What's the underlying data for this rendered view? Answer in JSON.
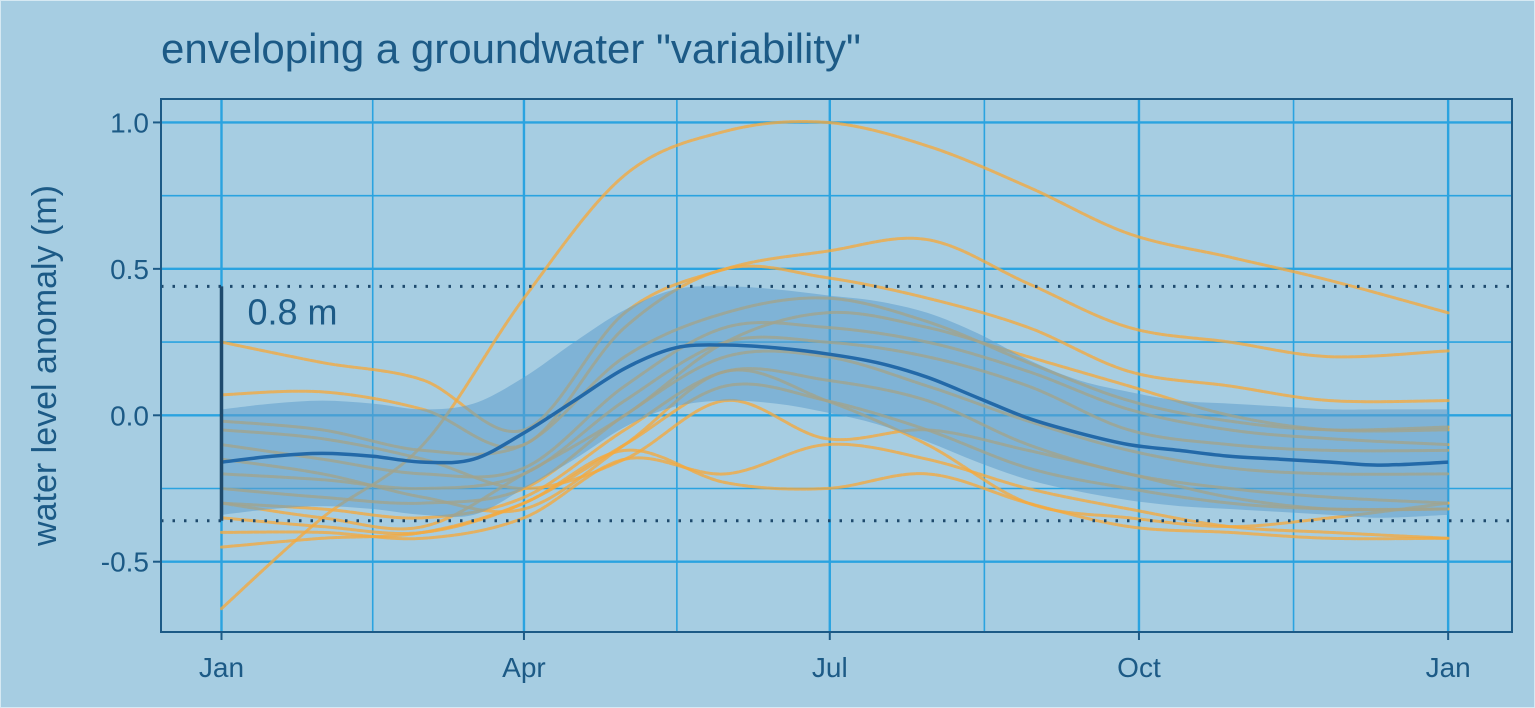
{
  "chart_data": {
    "type": "line",
    "title": "enveloping a groundwater \"variability\"",
    "xlabel": "",
    "ylabel": "water level anomaly (m)",
    "x_ticks": [
      {
        "label": "Jan",
        "day": 0
      },
      {
        "label": "Apr",
        "day": 90
      },
      {
        "label": "Jul",
        "day": 181
      },
      {
        "label": "Oct",
        "day": 273
      },
      {
        "label": "Jan",
        "day": 365
      }
    ],
    "y_ticks": [
      1.0,
      0.5,
      0.0,
      -0.5
    ],
    "y_tick_labels": [
      "1.0",
      "0.5",
      "0.0",
      "-0.5"
    ],
    "xlim_days": [
      -18,
      384
    ],
    "ylim": [
      -0.74,
      1.08
    ],
    "grid": true,
    "colors": {
      "background": "#a6cde2",
      "grid": "#2aa3e0",
      "text": "#1c5a86",
      "mean": "#2369a8",
      "band": "#5e9fcc",
      "traces": "#f5a93d",
      "envelope": "#1e4a6d"
    },
    "envelope": {
      "upper": 0.44,
      "lower": -0.36,
      "label": "0.8 m"
    },
    "mean": {
      "days": [
        0,
        15,
        30,
        45,
        60,
        75,
        90,
        105,
        120,
        135,
        150,
        165,
        180,
        195,
        210,
        225,
        240,
        255,
        270,
        285,
        300,
        315,
        330,
        345,
        365
      ],
      "values": [
        -0.16,
        -0.14,
        -0.13,
        -0.14,
        -0.16,
        -0.15,
        -0.06,
        0.05,
        0.16,
        0.23,
        0.24,
        0.23,
        0.21,
        0.18,
        0.13,
        0.06,
        -0.01,
        -0.06,
        -0.1,
        -0.12,
        -0.14,
        -0.15,
        -0.16,
        -0.17,
        -0.16
      ]
    },
    "band": {
      "days": [
        0,
        15,
        30,
        45,
        60,
        75,
        90,
        105,
        120,
        135,
        150,
        165,
        180,
        195,
        210,
        225,
        240,
        255,
        270,
        285,
        300,
        315,
        330,
        345,
        365
      ],
      "upper": [
        0.02,
        0.04,
        0.05,
        0.04,
        0.02,
        0.04,
        0.13,
        0.25,
        0.36,
        0.43,
        0.44,
        0.43,
        0.41,
        0.39,
        0.35,
        0.28,
        0.19,
        0.12,
        0.08,
        0.05,
        0.04,
        0.03,
        0.02,
        0.02,
        0.02
      ],
      "lower": [
        -0.34,
        -0.32,
        -0.31,
        -0.32,
        -0.34,
        -0.34,
        -0.25,
        -0.15,
        -0.04,
        0.03,
        0.05,
        0.04,
        0.01,
        -0.03,
        -0.09,
        -0.16,
        -0.22,
        -0.26,
        -0.29,
        -0.31,
        -0.32,
        -0.33,
        -0.34,
        -0.35,
        -0.34
      ]
    },
    "traces_days": [
      0,
      30,
      60,
      90,
      120,
      150,
      180,
      210,
      240,
      270,
      300,
      330,
      365
    ],
    "series": [
      {
        "values": [
          -0.66,
          -0.35,
          -0.1,
          0.4,
          0.82,
          0.97,
          1.0,
          0.92,
          0.78,
          0.62,
          0.54,
          0.46,
          0.35
        ]
      },
      {
        "values": [
          0.25,
          0.18,
          0.12,
          -0.05,
          0.35,
          0.5,
          0.56,
          0.6,
          0.45,
          0.3,
          0.25,
          0.2,
          0.22
        ]
      },
      {
        "values": [
          0.07,
          0.08,
          0.02,
          -0.1,
          0.3,
          0.5,
          0.47,
          0.4,
          0.3,
          0.15,
          0.1,
          0.05,
          0.05
        ]
      },
      {
        "values": [
          -0.02,
          -0.05,
          -0.12,
          -0.1,
          0.2,
          0.35,
          0.4,
          0.32,
          0.18,
          0.05,
          -0.02,
          -0.05,
          -0.04
        ]
      },
      {
        "values": [
          -0.1,
          -0.15,
          -0.2,
          -0.18,
          0.1,
          0.3,
          0.3,
          0.25,
          0.15,
          0.02,
          -0.05,
          -0.08,
          -0.1
        ]
      },
      {
        "values": [
          -0.2,
          -0.22,
          -0.25,
          -0.2,
          0.05,
          0.25,
          0.25,
          0.2,
          0.1,
          -0.05,
          -0.1,
          -0.12,
          -0.12
        ]
      },
      {
        "values": [
          -0.25,
          -0.28,
          -0.3,
          -0.25,
          0.0,
          0.2,
          0.2,
          0.1,
          -0.02,
          -0.12,
          -0.18,
          -0.2,
          -0.2
        ]
      },
      {
        "values": [
          -0.3,
          -0.32,
          -0.35,
          -0.28,
          -0.05,
          0.15,
          0.12,
          0.05,
          -0.1,
          -0.2,
          -0.25,
          -0.28,
          -0.3
        ]
      },
      {
        "values": [
          -0.35,
          -0.38,
          -0.4,
          -0.3,
          -0.1,
          0.1,
          0.05,
          -0.05,
          -0.18,
          -0.25,
          -0.3,
          -0.32,
          -0.32
        ]
      },
      {
        "values": [
          -0.4,
          -0.4,
          -0.42,
          -0.35,
          -0.15,
          -0.2,
          -0.1,
          -0.15,
          -0.25,
          -0.32,
          -0.38,
          -0.4,
          -0.42
        ]
      },
      {
        "values": [
          -0.45,
          -0.42,
          -0.4,
          -0.3,
          -0.12,
          -0.23,
          -0.25,
          -0.2,
          -0.3,
          -0.38,
          -0.4,
          -0.42,
          -0.42
        ]
      },
      {
        "values": [
          -0.05,
          -0.08,
          -0.15,
          -0.25,
          -0.15,
          0.05,
          -0.08,
          -0.05,
          -0.12,
          -0.2,
          -0.28,
          -0.32,
          -0.32
        ]
      },
      {
        "values": [
          -0.15,
          -0.2,
          -0.28,
          -0.32,
          -0.1,
          0.15,
          0.05,
          -0.1,
          -0.3,
          -0.35,
          -0.38,
          -0.35,
          -0.3
        ]
      },
      {
        "values": [
          -0.3,
          -0.35,
          -0.38,
          -0.2,
          0.0,
          0.25,
          0.35,
          0.3,
          0.2,
          0.1,
          0.0,
          -0.05,
          -0.05
        ]
      }
    ]
  }
}
